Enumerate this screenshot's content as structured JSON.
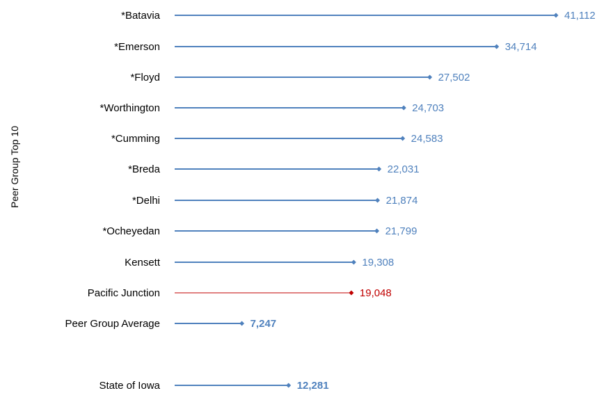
{
  "colors": {
    "default": "#4F81BD",
    "highlight": "#C00000",
    "label_default": "#4F81BD",
    "label_highlight": "#C00000"
  },
  "chart_data": {
    "type": "bar",
    "ylabel": "Peer Group Top 10",
    "xlim": [
      0,
      45000
    ],
    "grid": false,
    "rows": [
      {
        "category": "*Batavia",
        "value": 41112,
        "label": "41,112",
        "style": "default",
        "bold": false
      },
      {
        "category": "*Emerson",
        "value": 34714,
        "label": "34,714",
        "style": "default",
        "bold": false
      },
      {
        "category": "*Floyd",
        "value": 27502,
        "label": "27,502",
        "style": "default",
        "bold": false
      },
      {
        "category": "*Worthington",
        "value": 24703,
        "label": "24,703",
        "style": "default",
        "bold": false
      },
      {
        "category": "*Cumming",
        "value": 24583,
        "label": "24,583",
        "style": "default",
        "bold": false
      },
      {
        "category": "*Breda",
        "value": 22031,
        "label": "22,031",
        "style": "default",
        "bold": false
      },
      {
        "category": "*Delhi",
        "value": 21874,
        "label": "21,874",
        "style": "default",
        "bold": false
      },
      {
        "category": "*Ocheyedan",
        "value": 21799,
        "label": "21,799",
        "style": "default",
        "bold": false
      },
      {
        "category": "Kensett",
        "value": 19308,
        "label": "19,308",
        "style": "default",
        "bold": false
      },
      {
        "category": "Pacific Junction",
        "value": 19048,
        "label": "19,048",
        "style": "highlight",
        "bold": false
      },
      {
        "category": "Peer Group Average",
        "value": 7247,
        "label": "7,247",
        "style": "default",
        "bold": true
      },
      {
        "category": "State of Iowa",
        "value": 12281,
        "label": "12,281",
        "style": "default",
        "bold": true
      }
    ]
  }
}
